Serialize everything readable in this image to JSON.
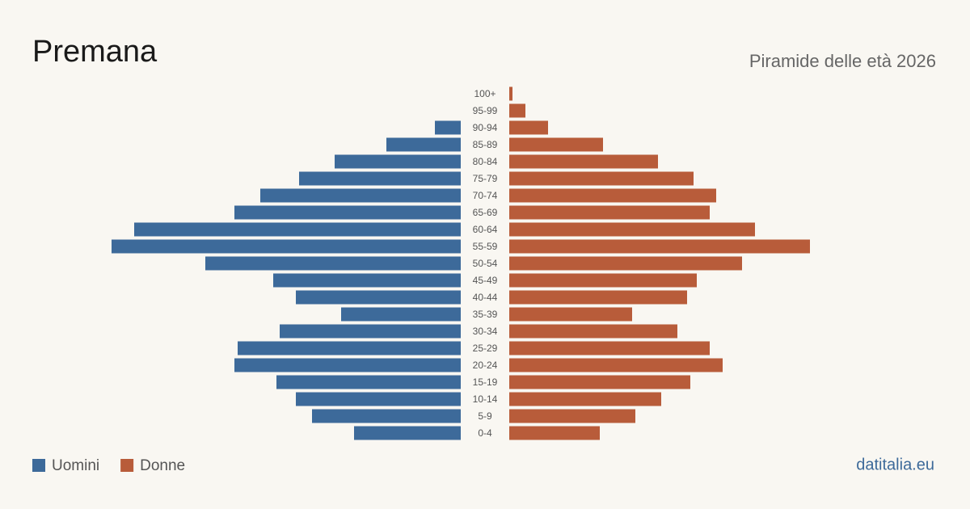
{
  "chart_data": {
    "type": "pyramid",
    "title": "Premana",
    "subtitle": "Piramide delle età 2026",
    "source": "datitalia.eu",
    "categories": [
      "0-4",
      "5-9",
      "10-14",
      "15-19",
      "20-24",
      "25-29",
      "30-34",
      "35-39",
      "40-44",
      "45-49",
      "50-54",
      "55-59",
      "60-64",
      "65-69",
      "70-74",
      "75-79",
      "80-84",
      "85-89",
      "90-94",
      "95-99",
      "100+"
    ],
    "series": [
      {
        "name": "Uomini",
        "color": "#3d6a9a",
        "values": [
          33,
          46,
          51,
          57,
          70,
          69,
          56,
          37,
          51,
          58,
          79,
          108,
          101,
          70,
          62,
          50,
          39,
          23,
          8,
          0,
          0
        ]
      },
      {
        "name": "Donne",
        "color": "#b85c3a",
        "values": [
          28,
          39,
          47,
          56,
          66,
          62,
          52,
          38,
          55,
          58,
          72,
          93,
          76,
          62,
          64,
          57,
          46,
          29,
          12,
          5,
          1
        ]
      }
    ],
    "xlim": [
      0,
      110
    ]
  }
}
